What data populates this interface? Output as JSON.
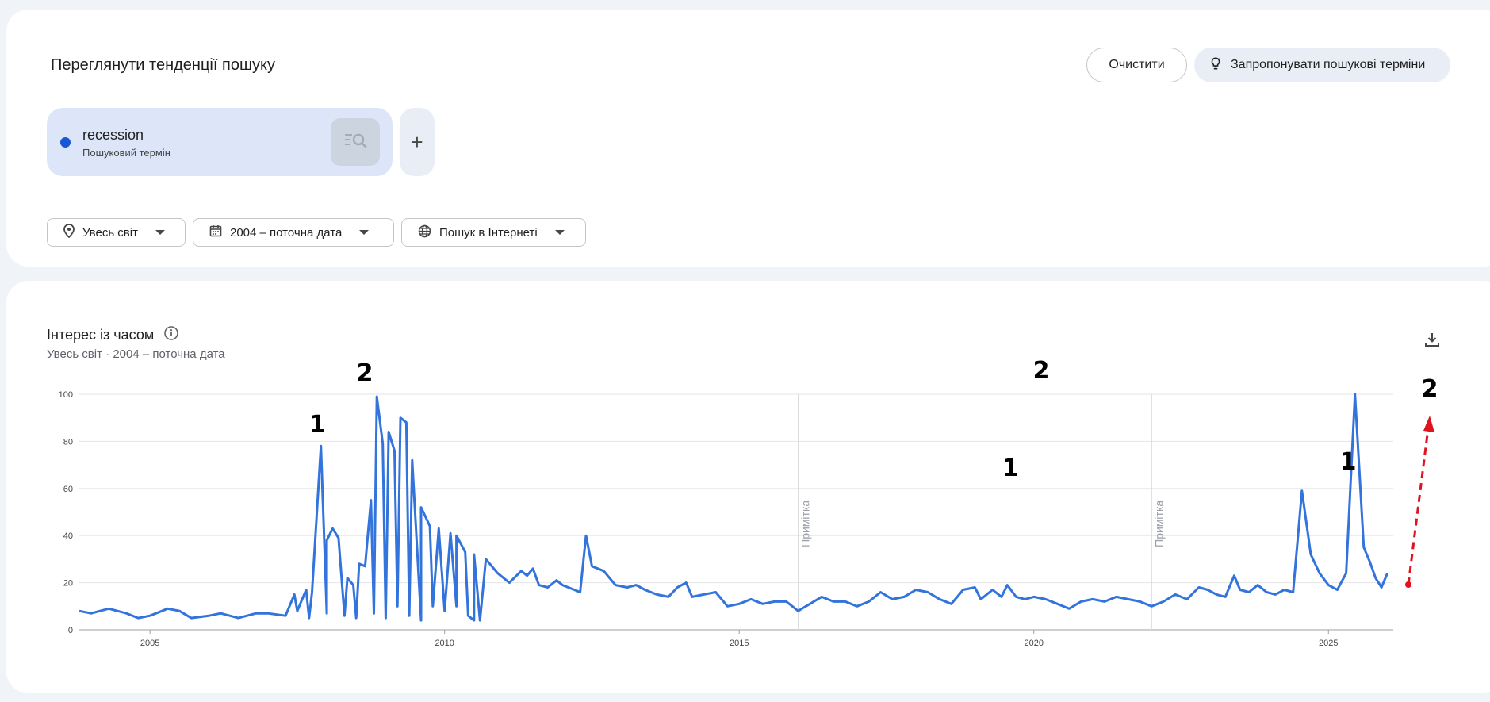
{
  "search": {
    "heading": "Переглянути тенденції пошуку",
    "clear_label": "Очистити",
    "suggest_label": "Запропонувати пошукові терміни",
    "term": {
      "name": "recession",
      "type": "Пошуковий термін",
      "color": "#1a57d6"
    },
    "add_label": "+"
  },
  "filters": {
    "region": "Увесь світ",
    "date": "2004 – поточна дата",
    "source": "Пошук в Інтернеті"
  },
  "chart": {
    "title": "Інтерес із часом",
    "subtitle": "Увесь світ · 2004 – поточна дата",
    "note_label": "Примітка"
  },
  "chart_data": {
    "type": "line",
    "title": "Інтерес із часом",
    "series": [
      {
        "name": "recession",
        "color": "#3273dc"
      }
    ],
    "xlim": [
      2003.8,
      2026.1
    ],
    "ylim": [
      0,
      100
    ],
    "y_ticks": [
      "0",
      "20",
      "40",
      "60",
      "80",
      "100"
    ],
    "x_ticks": [
      "2005",
      "2010",
      "2015",
      "2020",
      "2025"
    ],
    "note_lines": [
      2016.0,
      2022.0
    ],
    "grid": true,
    "points": [
      [
        2003.8,
        8
      ],
      [
        2004.0,
        7
      ],
      [
        2004.3,
        9
      ],
      [
        2004.6,
        7
      ],
      [
        2004.8,
        5
      ],
      [
        2005.0,
        6
      ],
      [
        2005.3,
        9
      ],
      [
        2005.5,
        8
      ],
      [
        2005.7,
        5
      ],
      [
        2006.0,
        6
      ],
      [
        2006.2,
        7
      ],
      [
        2006.5,
        5
      ],
      [
        2006.8,
        7
      ],
      [
        2007.0,
        7
      ],
      [
        2007.3,
        6
      ],
      [
        2007.5,
        8
      ],
      [
        2007.7,
        5
      ],
      [
        2008.0,
        7
      ],
      [
        2008.3,
        6
      ],
      [
        2008.5,
        5
      ],
      [
        2008.8,
        7
      ],
      [
        2009.0,
        5
      ],
      [
        2009.2,
        10
      ],
      [
        2009.4,
        6
      ],
      [
        2009.6,
        4
      ],
      [
        2009.8,
        10
      ],
      [
        2010.0,
        8
      ],
      [
        2010.2,
        10
      ],
      [
        2010.4,
        6
      ],
      [
        2010.5,
        4
      ],
      [
        2010.6,
        4
      ],
      [
        2007.3,
        6
      ],
      [
        2007.45,
        15
      ],
      [
        2007.55,
        11
      ],
      [
        2007.65,
        17
      ],
      [
        2007.75,
        16
      ],
      [
        2007.9,
        78
      ],
      [
        2008.0,
        38
      ],
      [
        2008.1,
        43
      ],
      [
        2008.2,
        39
      ],
      [
        2008.35,
        22
      ],
      [
        2008.45,
        19
      ],
      [
        2008.55,
        28
      ],
      [
        2008.65,
        27
      ],
      [
        2008.75,
        55
      ],
      [
        2008.85,
        99
      ],
      [
        2008.95,
        79
      ],
      [
        2009.05,
        84
      ],
      [
        2009.15,
        76
      ],
      [
        2009.25,
        90
      ],
      [
        2009.35,
        88
      ],
      [
        2009.45,
        72
      ],
      [
        2009.6,
        52
      ],
      [
        2009.75,
        44
      ],
      [
        2009.9,
        43
      ],
      [
        2010.1,
        41
      ],
      [
        2010.2,
        40
      ],
      [
        2010.35,
        33
      ],
      [
        2010.5,
        32
      ],
      [
        2010.7,
        30
      ],
      [
        2010.9,
        24
      ],
      [
        2011.1,
        20
      ],
      [
        2011.3,
        25
      ],
      [
        2011.4,
        23
      ],
      [
        2011.5,
        26
      ],
      [
        2011.6,
        19
      ],
      [
        2011.75,
        18
      ],
      [
        2011.9,
        21
      ],
      [
        2012.0,
        19
      ],
      [
        2012.2,
        17
      ],
      [
        2012.3,
        16
      ],
      [
        2012.4,
        40
      ],
      [
        2012.5,
        27
      ],
      [
        2012.7,
        25
      ],
      [
        2012.9,
        19
      ],
      [
        2013.1,
        18
      ],
      [
        2013.25,
        19
      ],
      [
        2013.4,
        17
      ],
      [
        2013.6,
        15
      ],
      [
        2013.8,
        14
      ],
      [
        2013.95,
        18
      ],
      [
        2014.1,
        20
      ],
      [
        2014.2,
        14
      ],
      [
        2014.4,
        15
      ],
      [
        2014.6,
        16
      ],
      [
        2014.8,
        10
      ],
      [
        2015.0,
        11
      ],
      [
        2015.2,
        13
      ],
      [
        2015.4,
        11
      ],
      [
        2015.6,
        12
      ],
      [
        2015.8,
        12
      ],
      [
        2016.0,
        8
      ],
      [
        2016.2,
        11
      ],
      [
        2016.4,
        14
      ],
      [
        2016.6,
        12
      ],
      [
        2016.8,
        12
      ],
      [
        2017.0,
        10
      ],
      [
        2017.2,
        12
      ],
      [
        2017.4,
        16
      ],
      [
        2017.6,
        13
      ],
      [
        2017.8,
        14
      ],
      [
        2018.0,
        17
      ],
      [
        2018.2,
        16
      ],
      [
        2018.4,
        13
      ],
      [
        2018.6,
        11
      ],
      [
        2018.8,
        17
      ],
      [
        2019.0,
        18
      ],
      [
        2019.1,
        13
      ],
      [
        2019.3,
        17
      ],
      [
        2019.45,
        14
      ],
      [
        2019.55,
        19
      ],
      [
        2019.7,
        14
      ],
      [
        2019.85,
        13
      ],
      [
        2020.0,
        14
      ],
      [
        2020.2,
        13
      ],
      [
        2020.4,
        11
      ],
      [
        2020.6,
        9
      ],
      [
        2020.8,
        12
      ],
      [
        2021.0,
        13
      ],
      [
        2021.2,
        12
      ],
      [
        2021.4,
        14
      ],
      [
        2021.6,
        13
      ],
      [
        2021.8,
        12
      ],
      [
        2022.0,
        10
      ],
      [
        2022.2,
        12
      ],
      [
        2022.4,
        15
      ],
      [
        2022.6,
        13
      ],
      [
        2022.8,
        18
      ],
      [
        2022.95,
        17
      ],
      [
        2023.1,
        15
      ],
      [
        2023.25,
        14
      ],
      [
        2023.4,
        23
      ],
      [
        2023.5,
        17
      ],
      [
        2023.65,
        16
      ],
      [
        2023.8,
        19
      ],
      [
        2023.95,
        16
      ],
      [
        2024.1,
        15
      ],
      [
        2024.25,
        17
      ],
      [
        2024.4,
        16
      ],
      [
        2024.55,
        59
      ],
      [
        2024.7,
        32
      ],
      [
        2024.85,
        24
      ],
      [
        2025.0,
        19
      ],
      [
        2025.15,
        17
      ],
      [
        2025.3,
        24
      ],
      [
        2025.45,
        100
      ],
      [
        2025.6,
        35
      ],
      [
        2025.7,
        29
      ],
      [
        2025.8,
        22
      ],
      [
        2025.9,
        18
      ],
      [
        2026.0,
        24
      ]
    ]
  },
  "annotations": [
    {
      "label": "1",
      "color": "#000000"
    },
    {
      "label": "2",
      "color": "#000000"
    }
  ]
}
